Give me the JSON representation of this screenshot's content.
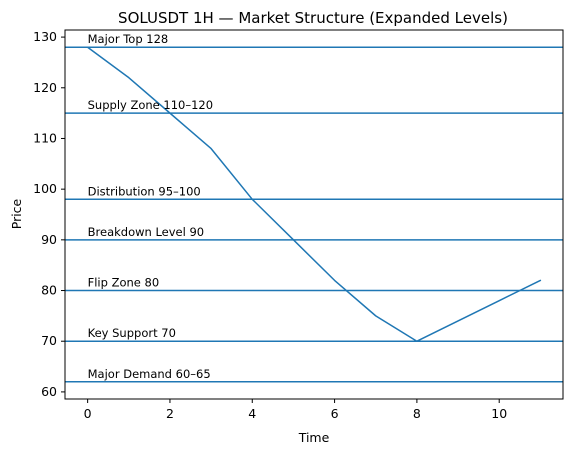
{
  "chart_data": {
    "type": "line",
    "title": "SOLUSDT 1H — Market Structure (Expanded Levels)",
    "xlabel": "Time",
    "ylabel": "Price",
    "xlim": [
      -0.55,
      11.55
    ],
    "ylim": [
      58.6,
      131.4
    ],
    "x_ticks": [
      0,
      2,
      4,
      6,
      8,
      10
    ],
    "y_ticks": [
      60,
      70,
      80,
      90,
      100,
      110,
      120,
      130
    ],
    "grid": false,
    "series": [
      {
        "x": [
          0,
          1,
          2,
          3,
          4,
          5,
          6,
          7,
          8,
          9,
          10,
          11
        ],
        "values": [
          128,
          122,
          115,
          108,
          98,
          90,
          82,
          75,
          70,
          74,
          78,
          82
        ]
      }
    ],
    "levels": [
      {
        "value": 128,
        "label": "Major Top 128"
      },
      {
        "value": 115,
        "label": "Supply Zone 110–120"
      },
      {
        "value": 98,
        "label": "Distribution 95–100"
      },
      {
        "value": 90,
        "label": "Breakdown Level 90"
      },
      {
        "value": 80,
        "label": "Flip Zone 80"
      },
      {
        "value": 70,
        "label": "Key Support 70"
      },
      {
        "value": 62,
        "label": "Major Demand 60–65"
      }
    ],
    "colors": {
      "line": "#1f77b4",
      "axes": "#000000",
      "background": "#ffffff"
    }
  }
}
